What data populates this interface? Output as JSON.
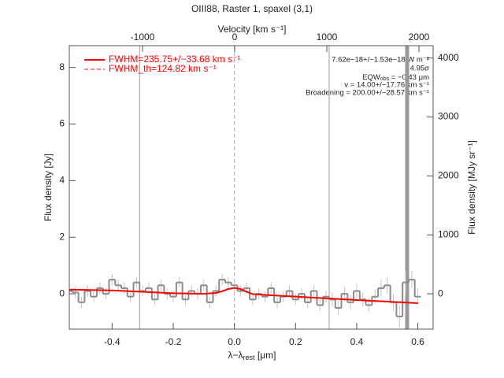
{
  "chart_data": {
    "type": "step",
    "title": "OIII88, Raster 1, spaxel (3,1)",
    "xlabel": {
      "text": "λ−λ",
      "sub": "rest",
      "rest": " [μm]"
    },
    "ylabel": "Flux density [Jy]",
    "y2label": "Flux density [MJy sr⁻¹]",
    "x2label": "Velocity [km s⁻¹]",
    "xlim": [
      -0.54,
      0.65
    ],
    "ylim": [
      -1.25,
      8.77
    ],
    "y2lim": [
      -600,
      4210
    ],
    "x2lim": [
      -1795,
      2154
    ],
    "xticks": [
      -0.4,
      -0.2,
      {
        "value": 0,
        "label": "0.0"
      },
      0.2,
      0.4,
      0.6
    ],
    "yticks": [
      0,
      2,
      4,
      6,
      8
    ],
    "y2ticks": [
      0,
      1000,
      2000,
      3000,
      4000
    ],
    "x2ticks": [
      -1000,
      0,
      1000,
      2000
    ],
    "spectrum": {
      "color": "#8c8c8c",
      "error_color": "#c4c4c4",
      "x": [
        -0.54,
        -0.52,
        -0.5,
        -0.48,
        -0.46,
        -0.44,
        -0.42,
        -0.4,
        -0.38,
        -0.36,
        -0.34,
        -0.32,
        -0.3,
        -0.28,
        -0.26,
        -0.24,
        -0.22,
        -0.2,
        -0.18,
        -0.16,
        -0.14,
        -0.12,
        -0.1,
        -0.08,
        -0.06,
        -0.04,
        -0.02,
        0.0,
        0.02,
        0.04,
        0.06,
        0.08,
        0.1,
        0.12,
        0.14,
        0.16,
        0.18,
        0.2,
        0.22,
        0.24,
        0.26,
        0.28,
        0.3,
        0.32,
        0.34,
        0.36,
        0.38,
        0.4,
        0.42,
        0.44,
        0.46,
        0.48,
        0.5,
        0.52,
        0.54,
        0.56,
        0.58,
        0.6
      ],
      "values": [
        0.1,
        0.05,
        -0.3,
        0.1,
        -0.1,
        0.2,
        0.0,
        0.5,
        0.3,
        0.2,
        -0.1,
        0.4,
        0.1,
        0.2,
        -0.2,
        0.3,
        0.0,
        -0.1,
        0.4,
        -0.2,
        0.1,
        0.0,
        0.3,
        -0.3,
        0.1,
        0.5,
        0.4,
        0.3,
        0.1,
        0.2,
        -0.2,
        0.0,
        -0.1,
        0.2,
        -0.3,
        -0.1,
        0.1,
        -0.2,
        0.0,
        -0.3,
        0.1,
        -0.4,
        -0.1,
        -0.2,
        -0.5,
        0.0,
        -0.3,
        0.1,
        -0.2,
        -0.4,
        -0.1,
        0.2,
        0.3,
        -0.3,
        -0.8,
        0.4,
        0.5,
        -0.1
      ],
      "errors": [
        0.2,
        0.2,
        0.2,
        0.2,
        0.2,
        0.2,
        0.2,
        0.2,
        0.2,
        0.2,
        0.2,
        0.2,
        0.2,
        0.2,
        0.2,
        0.2,
        0.2,
        0.2,
        0.2,
        0.2,
        0.2,
        0.2,
        0.2,
        0.2,
        0.2,
        0.2,
        0.2,
        0.2,
        0.2,
        0.2,
        0.2,
        0.2,
        0.2,
        0.2,
        0.2,
        0.2,
        0.2,
        0.2,
        0.2,
        0.2,
        0.2,
        0.2,
        0.2,
        0.25,
        0.25,
        0.25,
        0.25,
        0.25,
        0.25,
        0.25,
        0.25,
        0.3,
        0.3,
        0.3,
        0.4,
        0.4,
        0.3,
        0.3
      ]
    },
    "fit": {
      "color": "#ff0000",
      "x": [
        -0.54,
        -0.4,
        -0.2,
        -0.1,
        -0.06,
        -0.04,
        -0.02,
        0,
        0.02,
        0.04,
        0.06,
        0.1,
        0.2,
        0.4,
        0.6
      ],
      "values": [
        0.15,
        0.12,
        0.02,
        0.0,
        0.03,
        0.09,
        0.17,
        0.21,
        0.17,
        0.07,
        -0.01,
        -0.04,
        -0.1,
        -0.22,
        -0.33
      ]
    },
    "vlines": [
      {
        "value": -0.31,
        "style": "solid"
      },
      {
        "value": 0,
        "style": "dashed"
      },
      {
        "value": 0.31,
        "style": "solid"
      },
      {
        "value": 0.565,
        "style": "thick"
      }
    ],
    "legend": [
      {
        "label": "FWHM=235.75+/−33.68 km s⁻¹",
        "style": "solid"
      },
      {
        "label": "FWHM_th=124.82 km s⁻¹",
        "style": "dashed"
      }
    ],
    "annotations": {
      "flux": "7.62e−18+/−1.53e−18 W m⁻²",
      "sigma": "4.95σ",
      "eqw": {
        "text": "EQW",
        "sub": "obs",
        "rest": " = −0.43 μm"
      },
      "velocity": "v = 14.00+/−17.76 km s⁻¹",
      "broadening": "Broadening = 200.00+/−28.57 km s⁻¹"
    }
  }
}
